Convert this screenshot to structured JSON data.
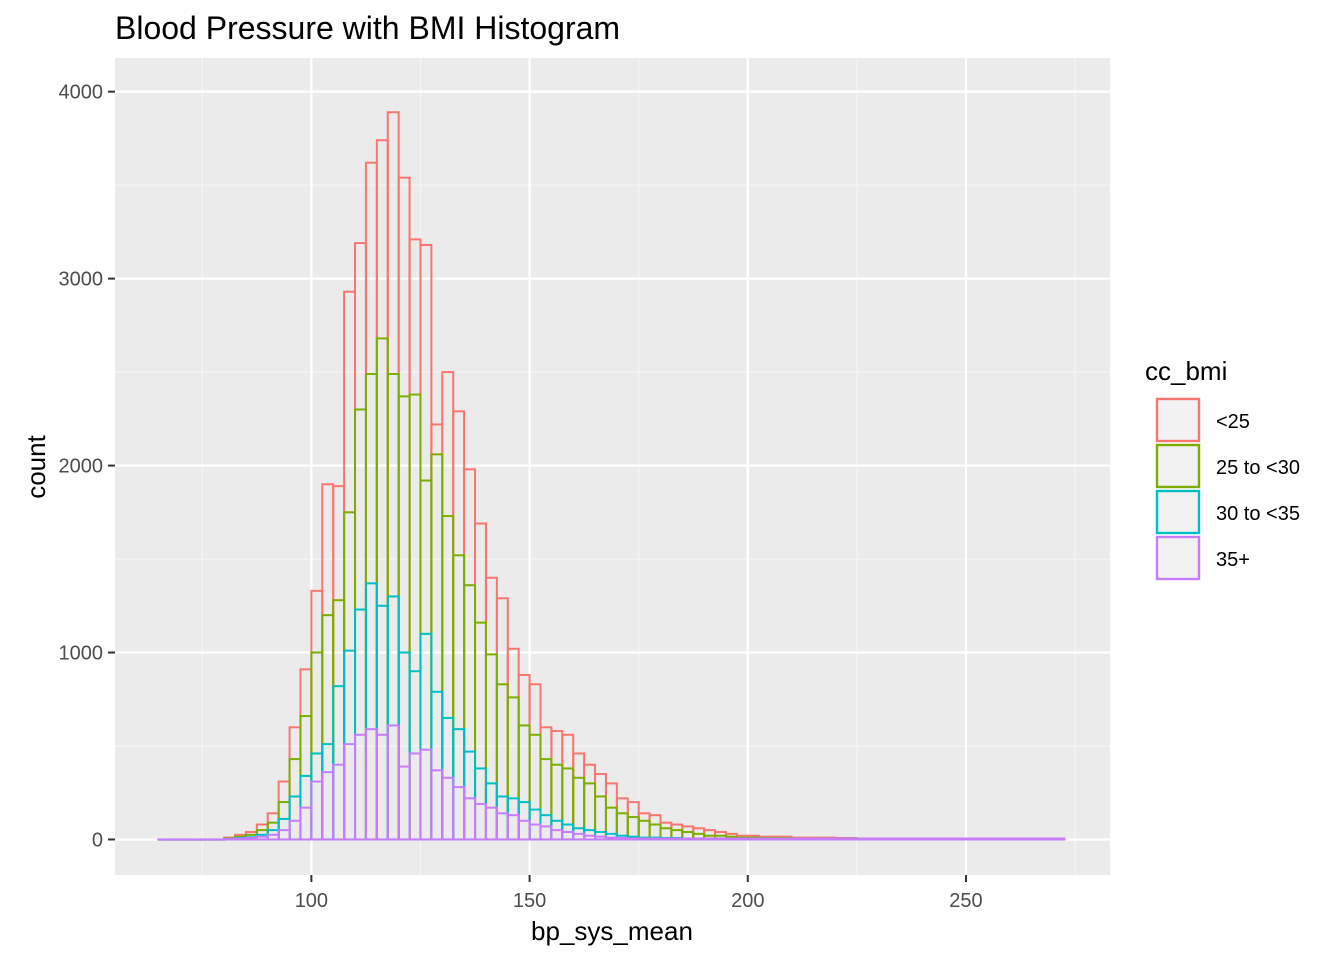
{
  "chart_data": {
    "type": "bar",
    "subtype": "stacked-histogram",
    "title": "Blood Pressure with BMI Histogram",
    "xlabel": "bp_sys_mean",
    "ylabel": "count",
    "xlim": [
      55,
      283
    ],
    "ylim": [
      -190,
      4180
    ],
    "x_ticks": [
      100,
      150,
      200,
      250
    ],
    "y_ticks": [
      0,
      1000,
      2000,
      3000,
      4000
    ],
    "x_tick_labels": [
      "100",
      "150",
      "200",
      "250"
    ],
    "y_tick_labels": [
      "0",
      "1000",
      "2000",
      "3000",
      "4000"
    ],
    "grid": true,
    "legend_position": "right",
    "legend_title": "cc_bmi",
    "bin_start": 65,
    "bin_width": 2.5,
    "series": [
      {
        "name": "<25",
        "color": "#F8766D",
        "cum": [
          0,
          0,
          0,
          0,
          0,
          0,
          10,
          25,
          40,
          80,
          140,
          310,
          600,
          910,
          1330,
          1900,
          1890,
          2930,
          3190,
          3620,
          3740,
          3890,
          3540,
          3210,
          3180,
          2220,
          2500,
          2290,
          1980,
          1690,
          1400,
          1290,
          1020,
          880,
          830,
          600,
          580,
          560,
          460,
          400,
          350,
          300,
          220,
          200,
          140,
          130,
          90,
          80,
          70,
          60,
          50,
          40,
          30,
          20,
          20,
          15,
          15,
          15,
          10,
          10,
          10,
          10,
          8,
          8,
          5,
          5,
          5,
          5,
          5,
          5,
          5,
          5,
          5,
          5,
          5,
          5,
          5,
          5,
          5,
          5,
          5,
          5,
          5
        ]
      },
      {
        "name": "25 to <30",
        "color": "#7CAE00",
        "cum": [
          0,
          0,
          0,
          0,
          0,
          0,
          5,
          15,
          25,
          50,
          90,
          200,
          430,
          660,
          1000,
          1200,
          1280,
          1750,
          2300,
          2490,
          2680,
          2490,
          2370,
          2380,
          1920,
          2060,
          1730,
          1520,
          1360,
          1160,
          990,
          830,
          760,
          610,
          560,
          430,
          400,
          380,
          330,
          300,
          230,
          170,
          140,
          120,
          100,
          80,
          60,
          50,
          40,
          30,
          20,
          20,
          15,
          10,
          10,
          8,
          8,
          8,
          5,
          5,
          5,
          5,
          5,
          5,
          5,
          5,
          5,
          5,
          5,
          5,
          5,
          5,
          5,
          5,
          5,
          5,
          5,
          5,
          5,
          5,
          5,
          5,
          5
        ]
      },
      {
        "name": "30 to <35",
        "color": "#00BFC4",
        "cum": [
          0,
          0,
          0,
          0,
          0,
          0,
          3,
          8,
          12,
          25,
          50,
          110,
          230,
          340,
          460,
          510,
          820,
          1010,
          1230,
          1370,
          1250,
          1300,
          1000,
          900,
          1100,
          790,
          650,
          590,
          470,
          380,
          300,
          230,
          220,
          200,
          160,
          130,
          100,
          80,
          60,
          50,
          40,
          30,
          20,
          15,
          10,
          10,
          8,
          8,
          5,
          5,
          5,
          5,
          5,
          5,
          5,
          5,
          5,
          5,
          5,
          5,
          5,
          5,
          5,
          5,
          5,
          5,
          5,
          5,
          5,
          5,
          5,
          5,
          5,
          5,
          5,
          5,
          5,
          5,
          5,
          5,
          5,
          5,
          5
        ]
      },
      {
        "name": "35+",
        "color": "#C77CFF",
        "cum": [
          0,
          0,
          0,
          0,
          0,
          0,
          2,
          5,
          8,
          15,
          25,
          50,
          100,
          170,
          310,
          360,
          400,
          510,
          560,
          590,
          560,
          610,
          390,
          460,
          480,
          370,
          330,
          280,
          220,
          190,
          170,
          140,
          130,
          100,
          80,
          70,
          50,
          40,
          30,
          20,
          15,
          10,
          8,
          5,
          5,
          5,
          5,
          5,
          5,
          5,
          5,
          5,
          5,
          5,
          5,
          5,
          5,
          5,
          5,
          5,
          5,
          5,
          5,
          5,
          5,
          5,
          5,
          5,
          5,
          5,
          5,
          5,
          5,
          5,
          5,
          5,
          5,
          5,
          5,
          5,
          5,
          5,
          5
        ]
      }
    ]
  }
}
